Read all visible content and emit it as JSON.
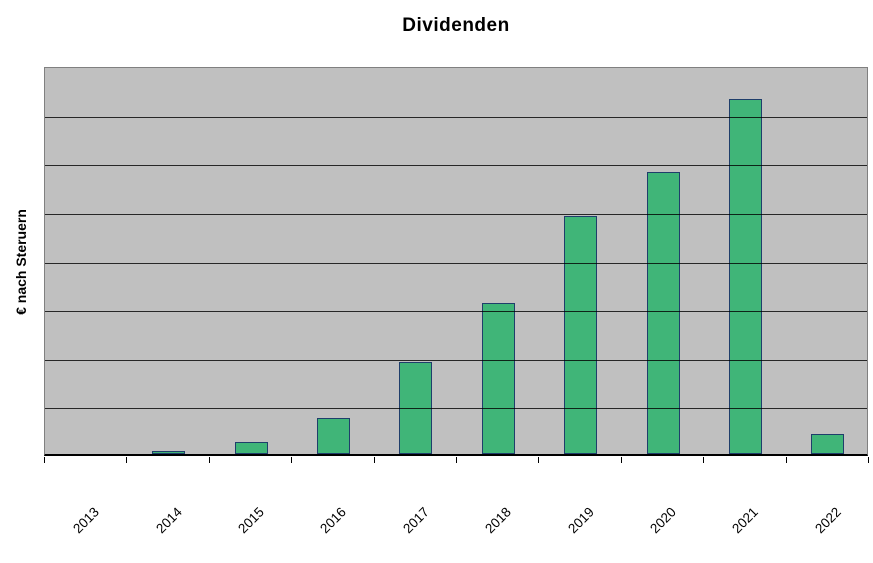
{
  "chart": {
    "title": "Dividenden",
    "y_axis_label": "€ nach Steruern"
  },
  "chart_data": {
    "type": "bar",
    "title": "Dividenden",
    "xlabel": "",
    "ylabel": "€ nach Steruern",
    "categories": [
      "2013",
      "2014",
      "2015",
      "2016",
      "2017",
      "2018",
      "2019",
      "2020",
      "2021",
      "2022"
    ],
    "values": [
      0,
      0.07,
      0.24,
      0.75,
      1.9,
      3.1,
      4.9,
      5.8,
      7.3,
      0.41
    ],
    "ylim": [
      0,
      8
    ],
    "units": "relative gridline intervals (y-axis tick labels are not shown in the chart)",
    "y_tick_labels_visible": false,
    "gridlines": "horizontal, 8 intervals, drawn over bars",
    "legend": "none",
    "x_label_rotation_deg": 45
  },
  "colors": {
    "bar_fill": "#40B578",
    "bar_border": "#1F3E6B",
    "plot_background": "#C0C0C0",
    "plot_border": "#808080",
    "gridline": "#000000",
    "axis_line": "#000000",
    "page_background": "#FFFFFF",
    "text": "#000000"
  }
}
